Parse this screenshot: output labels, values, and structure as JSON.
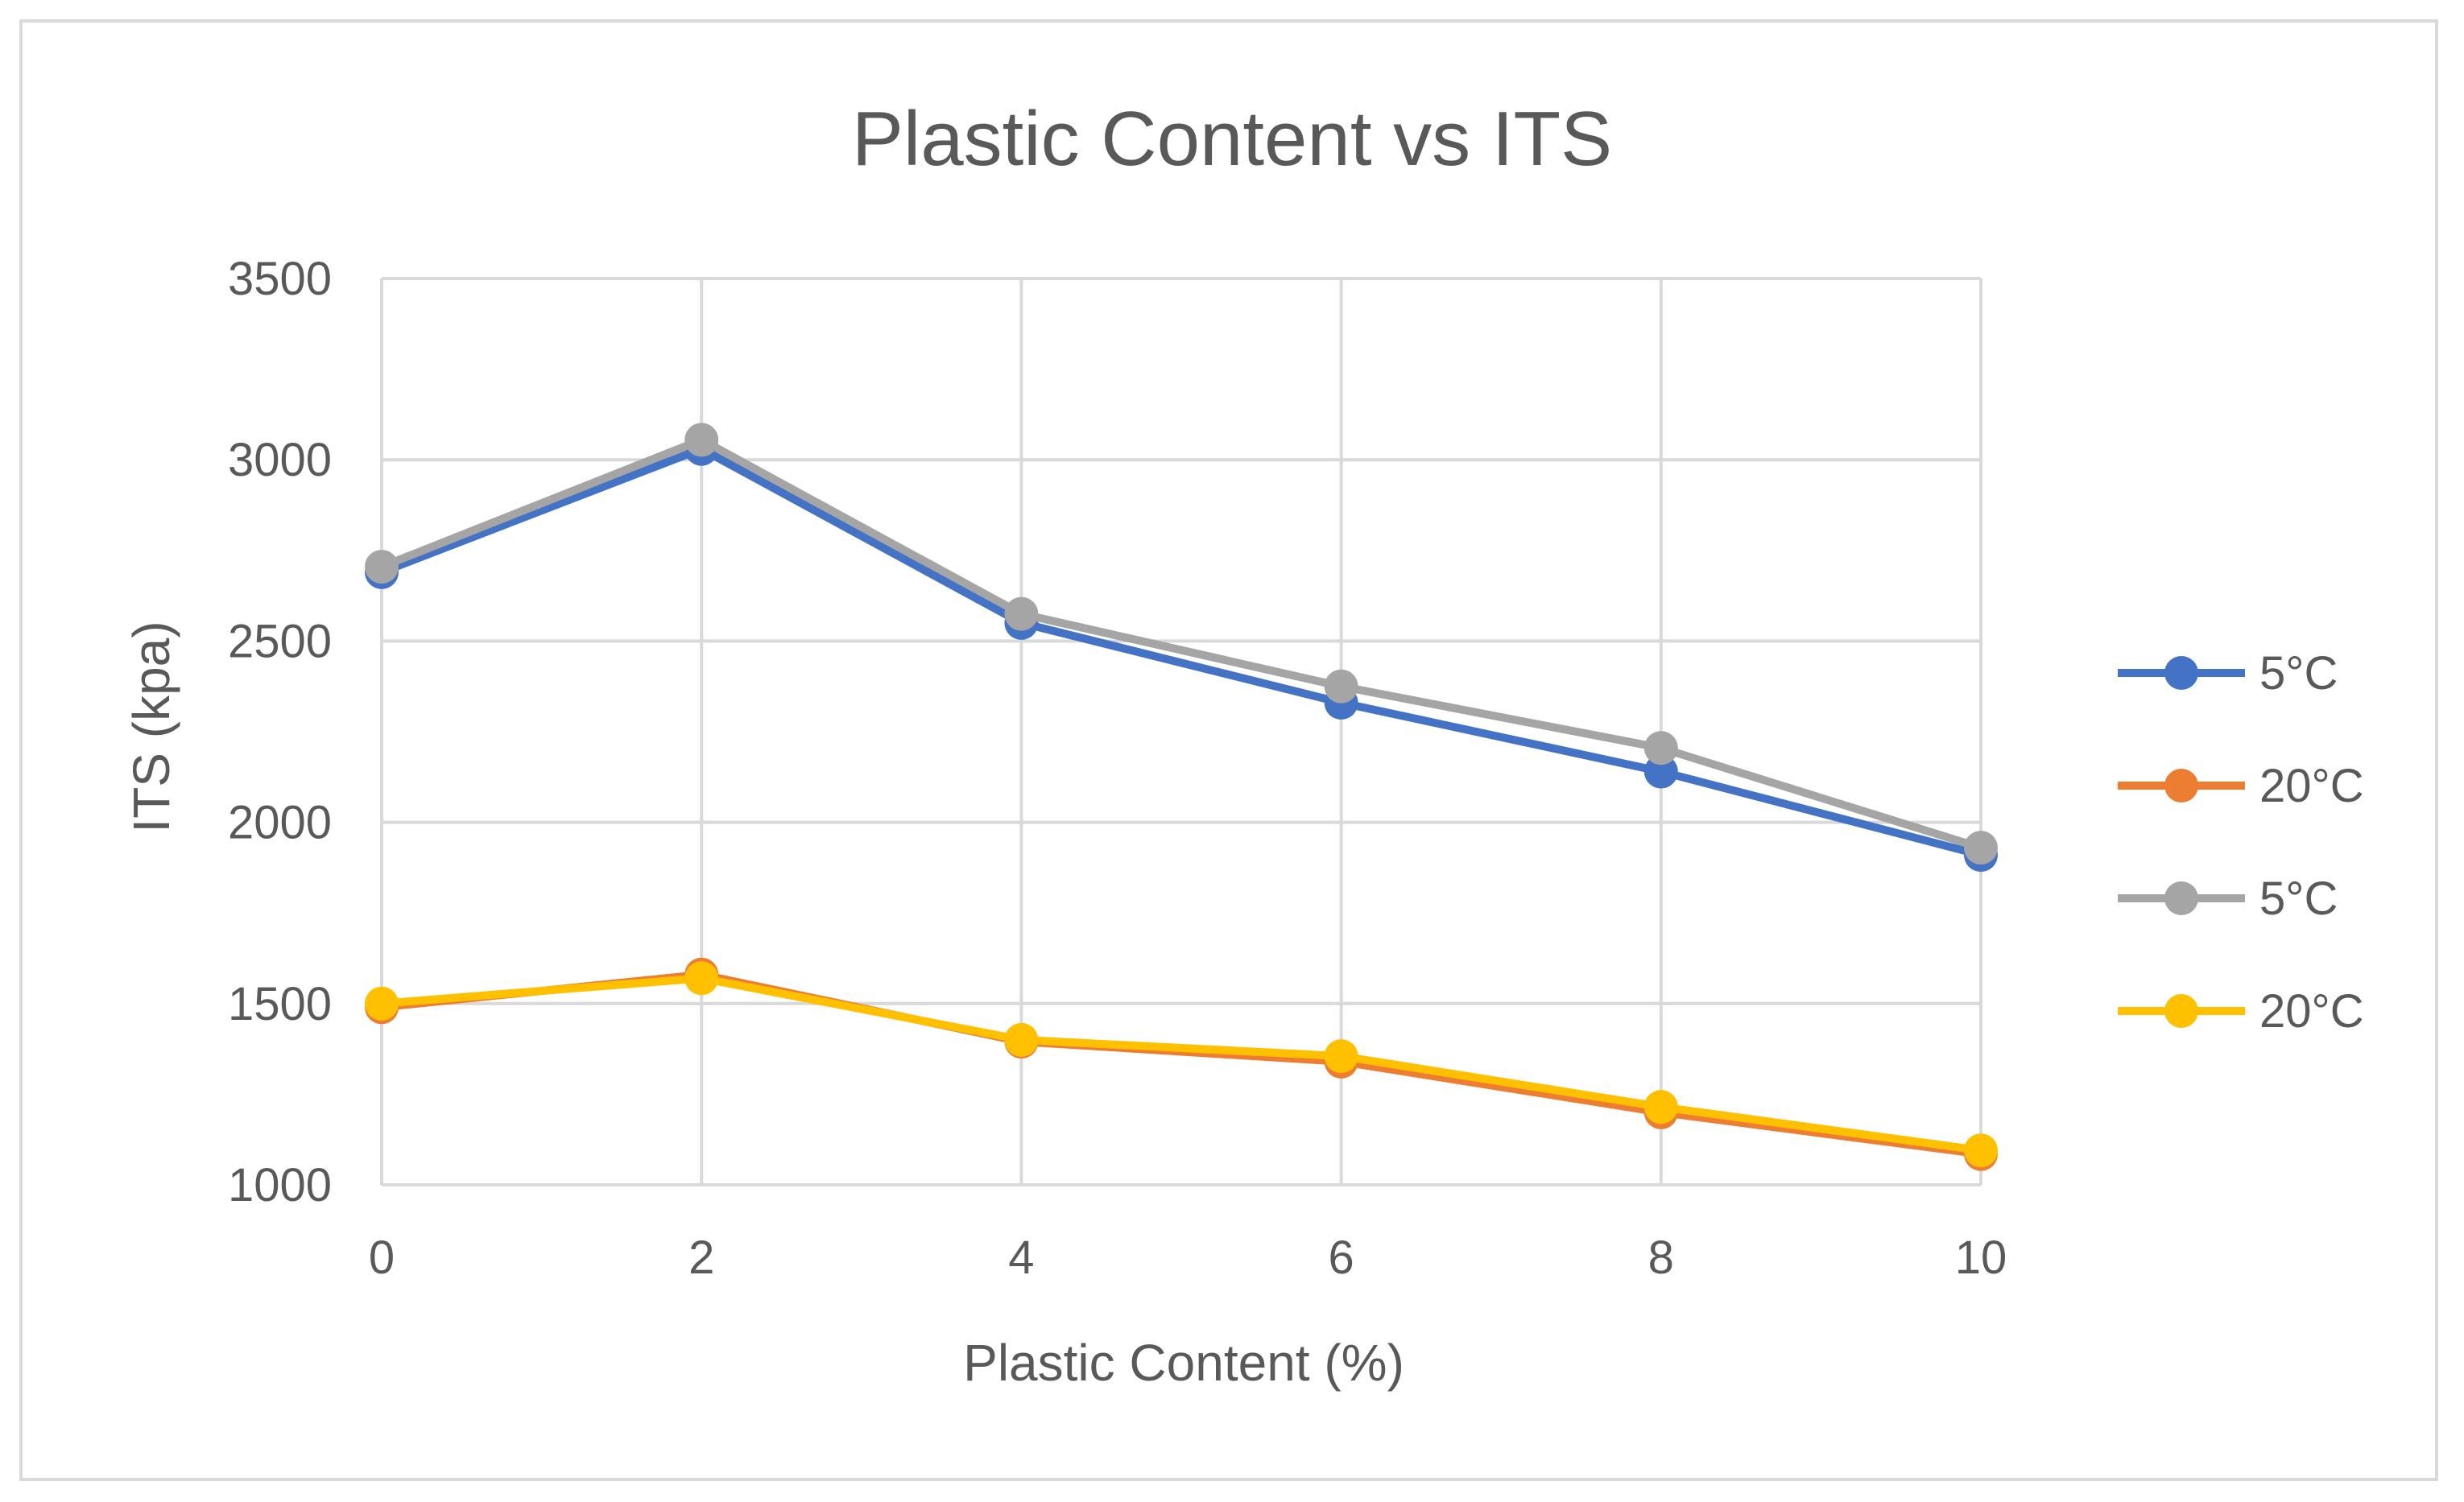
{
  "chart_data": {
    "type": "line",
    "title": "Plastic Content vs ITS",
    "xlabel": "Plastic Content (%)",
    "ylabel": "ITS (kpa)",
    "x": [
      0,
      2,
      4,
      6,
      8,
      10
    ],
    "x_ticks": [
      "0",
      "2",
      "4",
      "6",
      "8",
      "10"
    ],
    "y_ticks": [
      "1000",
      "1500",
      "2000",
      "2500",
      "3000",
      "3500"
    ],
    "xlim": [
      0,
      10
    ],
    "ylim": [
      1000,
      3500
    ],
    "grid": true,
    "legend_position": "right",
    "series": [
      {
        "name": "5°C",
        "color": "#4472C4",
        "values": [
          2690,
          3030,
          2550,
          2330,
          2140,
          1910
        ]
      },
      {
        "name": "20°C",
        "color": "#ED7D31",
        "values": [
          1490,
          1580,
          1395,
          1340,
          1200,
          1085
        ]
      },
      {
        "name": "5°C",
        "color": "#A5A5A5",
        "values": [
          2705,
          3055,
          2575,
          2375,
          2205,
          1930
        ]
      },
      {
        "name": "20°C",
        "color": "#FFC000",
        "values": [
          1500,
          1570,
          1400,
          1355,
          1215,
          1095
        ]
      }
    ]
  }
}
